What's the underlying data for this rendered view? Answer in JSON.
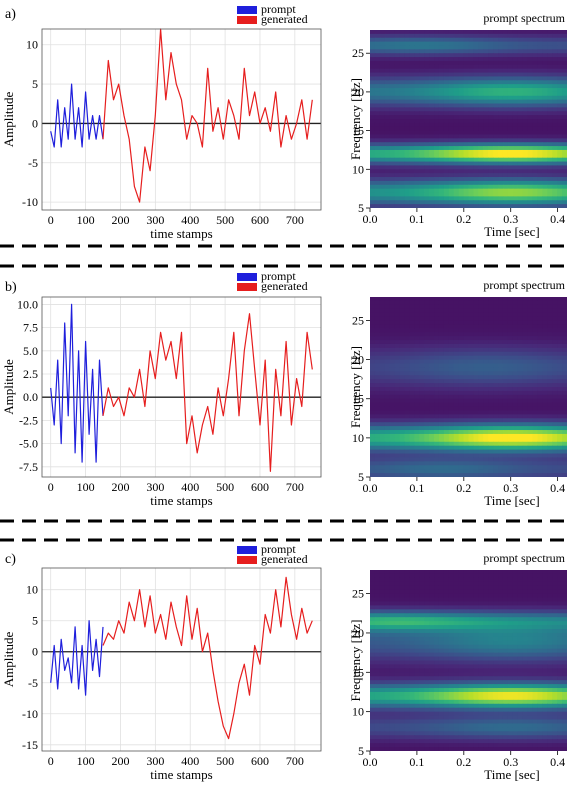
{
  "panels": [
    {
      "label": "a)",
      "legend": [
        "prompt",
        "generated"
      ],
      "xlabel": "time stamps",
      "ylabel": "Amplitude",
      "xticks": [
        "0",
        "100",
        "200",
        "300",
        "400",
        "500",
        "600",
        "700"
      ],
      "yticks": [
        "10",
        "5",
        "0",
        "-5",
        "-10"
      ],
      "spec_title": "prompt spectrum",
      "spec_ylabel": "Frequency [Hz]",
      "spec_xlabel": "Time [sec]",
      "spec_yticks": [
        "25",
        "20",
        "15",
        "10",
        "5"
      ],
      "spec_xticks": [
        "0.0",
        "0.1",
        "0.2",
        "0.3",
        "0.4"
      ]
    },
    {
      "label": "b)",
      "legend": [
        "prompt",
        "generated"
      ],
      "xlabel": "time stamps",
      "ylabel": "Amplitude",
      "xticks": [
        "0",
        "100",
        "200",
        "300",
        "400",
        "500",
        "600",
        "700"
      ],
      "yticks": [
        "10.0",
        "7.5",
        "5.0",
        "2.5",
        "0.0",
        "-2.5",
        "-5.0",
        "-7.5"
      ],
      "spec_title": "prompt spectrum",
      "spec_ylabel": "Frequency [Hz]",
      "spec_xlabel": "Time [sec]",
      "spec_yticks": [
        "25",
        "20",
        "15",
        "10",
        "5"
      ],
      "spec_xticks": [
        "0.0",
        "0.1",
        "0.2",
        "0.3",
        "0.4"
      ]
    },
    {
      "label": "c)",
      "legend": [
        "prompt",
        "generated"
      ],
      "xlabel": "time stamps",
      "ylabel": "Amplitude",
      "xticks": [
        "0",
        "100",
        "200",
        "300",
        "400",
        "500",
        "600",
        "700"
      ],
      "yticks": [
        "10",
        "5",
        "0",
        "-5",
        "-10",
        "-15"
      ],
      "spec_title": "prompt spectrum",
      "spec_ylabel": "Frequency [Hz]",
      "spec_xlabel": "Time [sec]",
      "spec_yticks": [
        "25",
        "20",
        "15",
        "10",
        "5"
      ],
      "spec_xticks": [
        "0.0",
        "0.1",
        "0.2",
        "0.3",
        "0.4"
      ]
    }
  ],
  "colors": {
    "prompt": "#1f1fdc",
    "generated": "#e61e1e"
  },
  "chart_data": [
    {
      "type": "line",
      "panel": "a)",
      "xlim": [
        -25,
        775
      ],
      "ylim": [
        -11,
        12
      ],
      "series": [
        {
          "name": "prompt",
          "x": [
            0,
            10,
            20,
            30,
            40,
            50,
            60,
            70,
            80,
            90,
            100,
            110,
            120,
            130,
            140,
            150
          ],
          "y": [
            -1,
            -3,
            3,
            -3,
            2,
            -2,
            5,
            -2,
            2,
            -3,
            4,
            -2,
            1,
            -2,
            1,
            -2
          ]
        },
        {
          "name": "generated",
          "x": [
            150,
            165,
            180,
            195,
            210,
            225,
            240,
            255,
            270,
            285,
            300,
            315,
            330,
            345,
            360,
            375,
            390,
            405,
            420,
            435,
            450,
            465,
            480,
            495,
            510,
            525,
            540,
            555,
            570,
            585,
            600,
            615,
            630,
            645,
            660,
            675,
            690,
            705,
            720,
            735,
            750
          ],
          "y": [
            -2,
            8,
            3,
            5,
            1,
            -2,
            -8,
            -10,
            -3,
            -6,
            1,
            12,
            3,
            9,
            5,
            3,
            -2,
            1,
            0,
            -3,
            7,
            -1,
            2,
            -2,
            3,
            1,
            -2,
            7,
            1,
            4,
            0,
            2,
            -1,
            4,
            -3,
            1,
            -2,
            0,
            3,
            -2,
            3
          ]
        }
      ]
    },
    {
      "type": "line",
      "panel": "b)",
      "xlim": [
        -25,
        775
      ],
      "ylim": [
        -8.6,
        10.8
      ],
      "series": [
        {
          "name": "prompt",
          "x": [
            0,
            10,
            20,
            30,
            40,
            50,
            60,
            70,
            80,
            90,
            100,
            110,
            120,
            130,
            140,
            150
          ],
          "y": [
            1,
            -3,
            4,
            -5,
            8,
            -2,
            10,
            -6,
            5,
            -7,
            6,
            -4,
            3,
            -7,
            4,
            -2
          ]
        },
        {
          "name": "generated",
          "x": [
            150,
            165,
            180,
            195,
            210,
            225,
            240,
            255,
            270,
            285,
            300,
            315,
            330,
            345,
            360,
            375,
            390,
            405,
            420,
            435,
            450,
            465,
            480,
            495,
            510,
            525,
            540,
            555,
            570,
            585,
            600,
            615,
            630,
            645,
            660,
            675,
            690,
            705,
            720,
            735,
            750
          ],
          "y": [
            -2,
            1,
            -1,
            0,
            -2,
            1,
            0,
            3,
            -1,
            5,
            2,
            7,
            4,
            6,
            2,
            7,
            -5,
            -2,
            -6,
            -3,
            -1,
            -4,
            1,
            -2,
            2,
            7,
            -2,
            5,
            9,
            3,
            -3,
            4,
            -8,
            3,
            -2,
            6,
            -3,
            2,
            -1,
            7,
            3
          ]
        }
      ]
    },
    {
      "type": "line",
      "panel": "c)",
      "xlim": [
        -25,
        775
      ],
      "ylim": [
        -16,
        13.5
      ],
      "series": [
        {
          "name": "prompt",
          "x": [
            0,
            10,
            20,
            30,
            40,
            50,
            60,
            70,
            80,
            90,
            100,
            110,
            120,
            130,
            140,
            150
          ],
          "y": [
            -5,
            1,
            -6,
            2,
            -3,
            -1,
            -5,
            4,
            -6,
            1,
            -7,
            5,
            -3,
            2,
            -4,
            4
          ]
        },
        {
          "name": "generated",
          "x": [
            150,
            165,
            180,
            195,
            210,
            225,
            240,
            255,
            270,
            285,
            300,
            315,
            330,
            345,
            360,
            375,
            390,
            405,
            420,
            435,
            450,
            465,
            480,
            495,
            510,
            525,
            540,
            555,
            570,
            585,
            600,
            615,
            630,
            645,
            660,
            675,
            690,
            705,
            720,
            735,
            750
          ],
          "y": [
            1,
            3,
            2,
            5,
            3,
            8,
            5,
            10,
            4,
            9,
            3,
            6,
            2,
            8,
            4,
            1,
            9,
            2,
            7,
            0,
            3,
            -3,
            -8,
            -12,
            -14,
            -10,
            -5,
            -2,
            -7,
            1,
            -2,
            6,
            3,
            10,
            4,
            12,
            6,
            2,
            7,
            3,
            5
          ]
        }
      ]
    },
    {
      "type": "heatmap",
      "panel": "a)",
      "title": "prompt spectrum",
      "xlim": [
        0,
        0.42
      ],
      "ylim": [
        5,
        28
      ],
      "bands": [
        {
          "freq": 7,
          "width": 1.6,
          "intensity": 0.8,
          "peak_time": 0.3
        },
        {
          "freq": 12,
          "width": 1.2,
          "intensity": 1.0,
          "peak_time": 0.3
        },
        {
          "freq": 20,
          "width": 1.8,
          "intensity": 0.6,
          "peak_time": 0.3
        },
        {
          "freq": 26,
          "width": 1.2,
          "intensity": 0.35,
          "peak_time": 0.1
        }
      ]
    },
    {
      "type": "heatmap",
      "panel": "b)",
      "title": "prompt spectrum",
      "xlim": [
        0,
        0.42
      ],
      "ylim": [
        5,
        28
      ],
      "bands": [
        {
          "freq": 10,
          "width": 1.6,
          "intensity": 1.0,
          "peak_time": 0.3
        },
        {
          "freq": 19,
          "width": 2.5,
          "intensity": 0.25,
          "peak_time": 0.25
        },
        {
          "freq": 6,
          "width": 1.5,
          "intensity": 0.3,
          "peak_time": 0.15
        }
      ]
    },
    {
      "type": "heatmap",
      "panel": "c)",
      "title": "prompt spectrum",
      "xlim": [
        0,
        0.42
      ],
      "ylim": [
        5,
        28
      ],
      "bands": [
        {
          "freq": 12,
          "width": 1.5,
          "intensity": 0.95,
          "peak_time": 0.3
        },
        {
          "freq": 21.5,
          "width": 1.2,
          "intensity": 0.55,
          "peak_time": 0.05
        },
        {
          "freq": 19,
          "width": 2.5,
          "intensity": 0.4,
          "peak_time": 0.3
        },
        {
          "freq": 8,
          "width": 1.5,
          "intensity": 0.3,
          "peak_time": 0.3
        }
      ]
    }
  ]
}
